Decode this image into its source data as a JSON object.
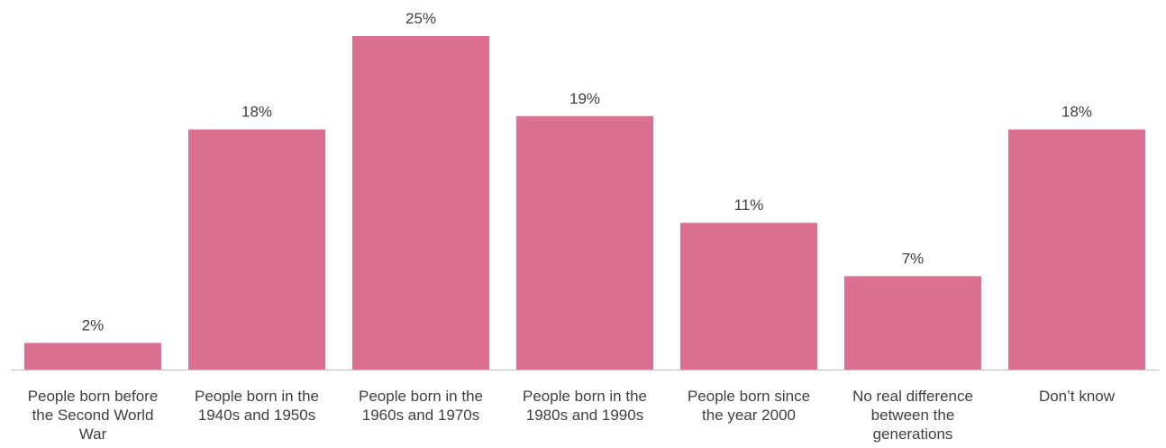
{
  "chart_data": {
    "type": "bar",
    "categories": [
      [
        "People born before",
        "the Second World",
        "War"
      ],
      [
        "People born in the",
        "1940s and 1950s"
      ],
      [
        "People born in the",
        "1960s and 1970s"
      ],
      [
        "People born in the",
        "1980s and 1990s"
      ],
      [
        "People born since",
        "the year 2000"
      ],
      [
        "No real difference",
        "between the",
        "generations"
      ],
      [
        "Don’t know"
      ]
    ],
    "values": [
      2,
      18,
      25,
      19,
      11,
      7,
      18
    ],
    "value_labels": [
      "2%",
      "18%",
      "25%",
      "19%",
      "11%",
      "7%",
      "18%"
    ],
    "title": "",
    "xlabel": "",
    "ylabel": "",
    "ylim": [
      0,
      25
    ],
    "grid": false,
    "legend": "none",
    "colors": {
      "bar": "#DC7091",
      "axis": "#BFBFBF",
      "text": "#404040"
    }
  }
}
